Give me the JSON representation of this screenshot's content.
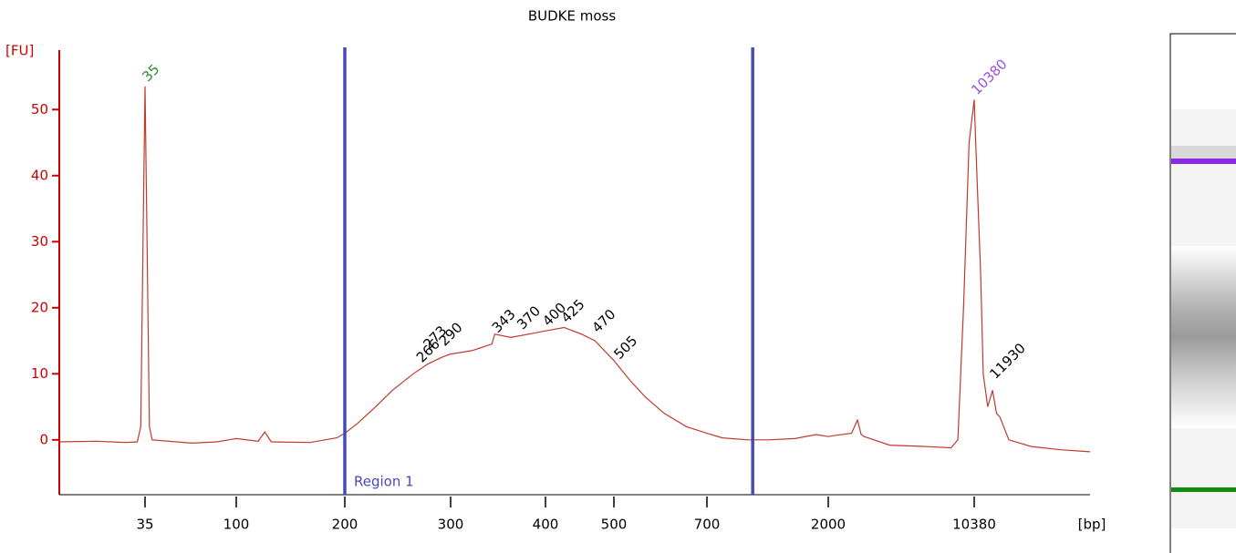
{
  "chart_data": {
    "type": "line",
    "title": "BUDKE moss",
    "ylabel": "[FU]",
    "xlabel": "[bp]",
    "color": "#c0392b",
    "axis_color": "#cc0000",
    "xlim": [
      13,
      25000
    ],
    "xticks": [
      35,
      100,
      200,
      300,
      400,
      500,
      700,
      2000,
      10380
    ],
    "ylim": [
      -8.3,
      59
    ],
    "yticks": [
      0,
      10,
      20,
      30,
      40,
      50
    ],
    "x": [
      13,
      20,
      28,
      32,
      33.3,
      34.2,
      35,
      35.8,
      36.8,
      38,
      60,
      80,
      100,
      115,
      120,
      125,
      160,
      190,
      200,
      210,
      225,
      240,
      260,
      275,
      290,
      300,
      320,
      340,
      343,
      360,
      380,
      400,
      425,
      450,
      470,
      500,
      530,
      560,
      600,
      650,
      700,
      800,
      1000,
      1200,
      1500,
      1800,
      2000,
      2200,
      2600,
      2780,
      2900,
      3000,
      4000,
      6000,
      8000,
      8630,
      9200,
      9800,
      10380,
      10600,
      10900,
      11120,
      11500,
      11930,
      12300,
      12600,
      13500,
      16000,
      20000,
      25000
    ],
    "values": [
      -0.3,
      -0.2,
      -0.4,
      -0.3,
      2,
      30,
      53.5,
      30,
      2,
      0,
      -0.5,
      -0.3,
      0.2,
      -0.2,
      1.2,
      -0.3,
      -0.4,
      0.3,
      1,
      2.5,
      5,
      7.5,
      10,
      11.5,
      12.5,
      13,
      13.5,
      14.5,
      16,
      15.5,
      16,
      16.5,
      17,
      16,
      15,
      12,
      9,
      6.5,
      4,
      2,
      1,
      0.3,
      0,
      0,
      0.2,
      0.8,
      0.5,
      0.7,
      1,
      3,
      0.8,
      0.5,
      -0.8,
      -1,
      -1.2,
      0,
      20,
      45,
      51.5,
      40,
      25,
      10,
      5,
      7.5,
      4,
      3.5,
      0,
      -1,
      -1.5,
      -1.8
    ],
    "regions": [
      {
        "label": "Region 1",
        "start": 200,
        "end": 1040,
        "color": "#4848b8"
      }
    ],
    "peak_labels": [
      {
        "x": 35,
        "y": 54,
        "color": "#2e8b2e"
      },
      {
        "x": 266,
        "y": 11.5,
        "color": "#000000"
      },
      {
        "x": 273,
        "y": 13.5,
        "color": "#000000"
      },
      {
        "x": 290,
        "y": 14,
        "color": "#000000"
      },
      {
        "x": 343,
        "y": 16,
        "color": "#000000"
      },
      {
        "x": 370,
        "y": 16.5,
        "color": "#000000"
      },
      {
        "x": 400,
        "y": 17,
        "color": "#000000"
      },
      {
        "x": 425,
        "y": 17.5,
        "color": "#000000"
      },
      {
        "x": 470,
        "y": 16,
        "color": "#000000"
      },
      {
        "x": 505,
        "y": 12,
        "color": "#000000"
      },
      {
        "x": 10380,
        "y": 52,
        "color": "#9b4fe0"
      },
      {
        "x": 11930,
        "y": 9,
        "color": "#000000"
      }
    ]
  }
}
